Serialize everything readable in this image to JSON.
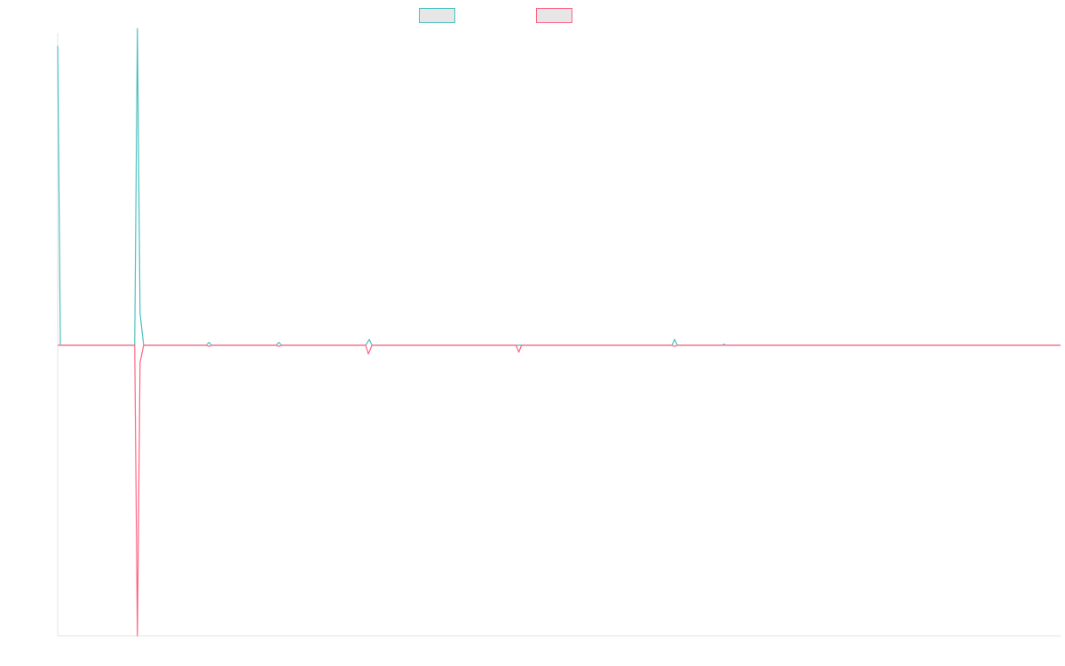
{
  "chart_data": {
    "type": "line",
    "title": "",
    "xlabel": "",
    "ylabel": "",
    "xlim": [
      0,
      560
    ],
    "ylim": [
      -1.0,
      1.075
    ],
    "grid": false,
    "legend_position": "top-center",
    "series": [
      {
        "color": "#4bc0c0",
        "fill": "#e6e6e6",
        "points": [
          [
            0,
            1.03
          ],
          [
            1.5,
            0
          ],
          [
            43,
            0
          ],
          [
            44.5,
            1.09
          ],
          [
            46,
            0.11
          ],
          [
            48,
            0
          ],
          [
            83,
            0
          ],
          [
            84.5,
            0.01
          ],
          [
            86,
            0
          ],
          [
            122,
            0
          ],
          [
            123.5,
            0.01
          ],
          [
            125,
            0
          ],
          [
            172,
            0
          ],
          [
            174,
            0.02
          ],
          [
            175.5,
            0
          ],
          [
            343,
            0
          ],
          [
            344.5,
            0.02
          ],
          [
            346,
            0
          ],
          [
            371,
            0
          ],
          [
            372,
            0.004
          ],
          [
            373,
            0
          ],
          [
            560,
            0
          ]
        ]
      },
      {
        "color": "#ff6384",
        "fill": "#e6e6e6",
        "points": [
          [
            0,
            0
          ],
          [
            43,
            0
          ],
          [
            44.5,
            -1.0
          ],
          [
            46,
            -0.06
          ],
          [
            48,
            0
          ],
          [
            83,
            0
          ],
          [
            84.5,
            -0.004
          ],
          [
            86,
            0
          ],
          [
            122,
            0
          ],
          [
            123.5,
            -0.004
          ],
          [
            125,
            0
          ],
          [
            172,
            0
          ],
          [
            173.5,
            -0.03
          ],
          [
            175.5,
            0
          ],
          [
            256,
            0
          ],
          [
            257.5,
            -0.024
          ],
          [
            259,
            0
          ],
          [
            343,
            0
          ],
          [
            344.5,
            -0.004
          ],
          [
            346,
            0
          ],
          [
            560,
            0
          ]
        ]
      }
    ]
  }
}
